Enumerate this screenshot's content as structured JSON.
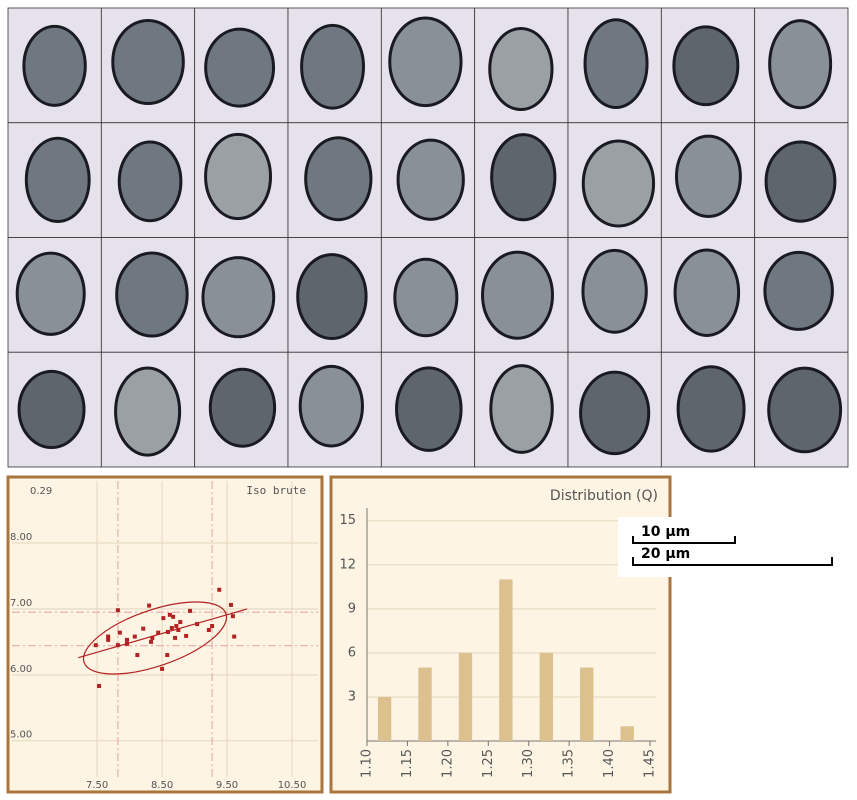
{
  "chart_data": [
    {
      "type": "scatter",
      "corner_label": "0.29",
      "annotation": "Iso brute",
      "color": "#b22222",
      "x": [
        7.53,
        7.48,
        7.67,
        7.67,
        7.82,
        7.85,
        7.82,
        7.96,
        7.96,
        8.08,
        8.12,
        8.3,
        8.33,
        8.35,
        8.44,
        8.52,
        8.5,
        8.58,
        8.59,
        8.62,
        8.65,
        8.67,
        8.7,
        8.72,
        8.75,
        8.78,
        8.87,
        8.93,
        9.04,
        9.22,
        9.27,
        9.38,
        9.56,
        9.59,
        9.61,
        8.21
      ],
      "y": [
        5.83,
        6.45,
        6.58,
        6.53,
        6.98,
        6.64,
        6.45,
        6.47,
        6.53,
        6.58,
        6.3,
        7.05,
        6.5,
        6.56,
        6.64,
        6.86,
        6.09,
        6.3,
        6.65,
        6.91,
        6.71,
        6.88,
        6.56,
        6.74,
        6.68,
        6.8,
        6.59,
        6.97,
        6.77,
        6.68,
        6.74,
        7.29,
        7.06,
        6.89,
        6.58,
        6.7
      ],
      "xlim": [
        6.19,
        10.9
      ],
      "ylim": [
        4.45,
        8.94
      ],
      "xticks": [
        {
          "value": 7.5,
          "label": "7.50"
        },
        {
          "value": 8.5,
          "label": "8.50"
        },
        {
          "value": 9.5,
          "label": "9.50"
        },
        {
          "value": 10.5,
          "label": "10.50"
        }
      ],
      "yticks": [
        {
          "value": 5,
          "label": "5.00"
        },
        {
          "value": 6,
          "label": "6.00"
        },
        {
          "value": 7,
          "label": "7.00"
        },
        {
          "value": 8,
          "label": "8.00"
        }
      ],
      "grid": true,
      "vlines": [
        7.82,
        9.27
      ],
      "hlines": [
        6.44,
        6.95
      ],
      "fit_line": {
        "x": [
          7.21,
          9.81
        ],
        "y": [
          6.26,
          7.0
        ]
      }
    },
    {
      "type": "histogram",
      "title": "Distribution (Q)",
      "color": "#dcc08e",
      "bins": [
        1.1,
        1.15,
        1.2,
        1.25,
        1.3,
        1.35,
        1.4,
        1.45
      ],
      "values": [
        3,
        5,
        6,
        11,
        6,
        5,
        1
      ],
      "xlim": [
        1.1,
        1.45
      ],
      "ylim": [
        0,
        16
      ],
      "xticks": [
        {
          "value": 1.1,
          "label": "1.10"
        },
        1.15,
        {
          "value": 1.2,
          "label": "1.20"
        },
        1.25,
        {
          "value": 1.3,
          "label": "1.30"
        },
        1.35,
        {
          "value": 1.4,
          "label": "1.40"
        },
        1.45
      ],
      "yticks": [
        3,
        6,
        9,
        12,
        15
      ],
      "grid": true
    }
  ],
  "scale_bars": [
    {
      "label": "10 µm"
    },
    {
      "label": "20 µm"
    }
  ]
}
